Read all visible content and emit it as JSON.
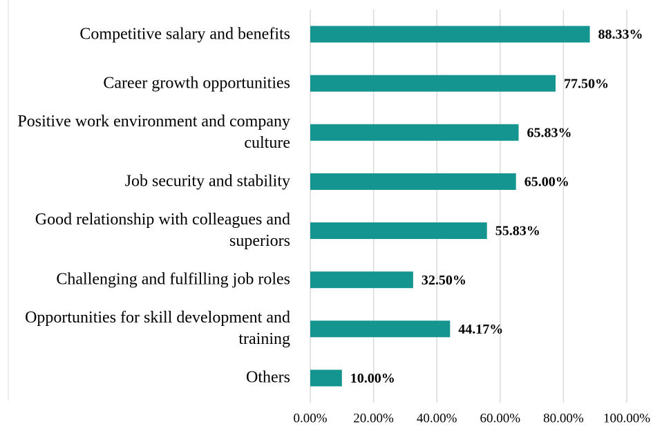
{
  "chart_data": {
    "type": "barh",
    "categories": [
      "Competitive salary and benefits",
      "Career growth opportunities",
      "Positive work environment and company culture",
      "Job security and stability",
      "Good relationship with colleagues and superiors",
      "Challenging and fulfilling job roles",
      "Opportunities for skill development and training",
      "Others"
    ],
    "values": [
      88.33,
      77.5,
      65.83,
      65,
      55.83,
      32.5,
      44.17,
      10
    ],
    "value_labels": [
      "88.33%",
      "77.50%",
      "65.83%",
      "65.00%",
      "55.83%",
      "32.50%",
      "44.17%",
      "10.00%"
    ],
    "color": "#14958f",
    "xlim": [
      0,
      100
    ],
    "xticks": [
      {
        "value": 0,
        "label": "0.00%"
      },
      {
        "value": 20,
        "label": "20.00%"
      },
      {
        "value": 40,
        "label": "40.00%"
      },
      {
        "value": 60,
        "label": "60.00%"
      },
      {
        "value": 80,
        "label": "80.00%"
      },
      {
        "value": 100,
        "label": "100.00%"
      }
    ],
    "grid": true
  }
}
